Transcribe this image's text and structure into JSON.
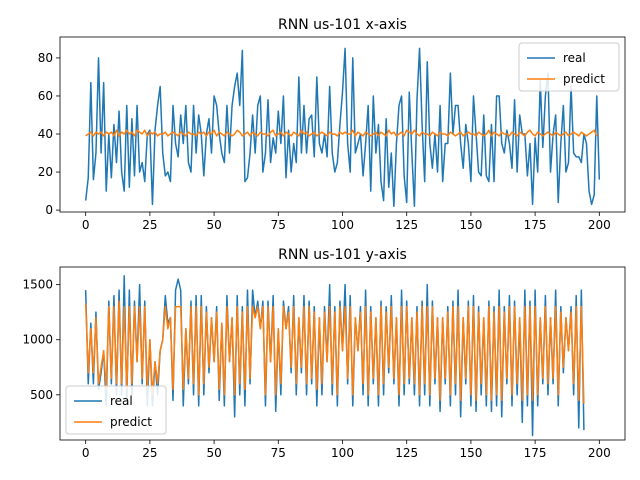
{
  "chart_data": [
    {
      "type": "line",
      "title": "RNN us-101 x-axis",
      "xlabel": "",
      "ylabel": "",
      "xlim": [
        -10,
        210
      ],
      "ylim": [
        -1,
        91
      ],
      "xticks": [
        0,
        25,
        50,
        75,
        100,
        125,
        150,
        175,
        200
      ],
      "yticks": [
        0,
        20,
        40,
        60,
        80
      ],
      "legend": "upper right",
      "grid": false,
      "series": [
        {
          "name": "real",
          "color": "#1f77b4",
          "values": [
            5,
            17,
            67,
            16,
            30,
            80,
            30,
            67,
            10,
            40,
            17,
            45,
            25,
            52,
            20,
            10,
            55,
            12,
            48,
            18,
            55,
            20,
            25,
            15,
            40,
            42,
            3,
            42,
            55,
            65,
            30,
            18,
            20,
            15,
            55,
            35,
            28,
            50,
            35,
            55,
            25,
            20,
            55,
            30,
            50,
            40,
            18,
            40,
            48,
            30,
            60,
            55,
            40,
            30,
            25,
            55,
            30,
            55,
            65,
            72,
            55,
            84,
            15,
            17,
            30,
            50,
            30,
            55,
            60,
            20,
            30,
            58,
            25,
            38,
            30,
            52,
            35,
            60,
            17,
            42,
            20,
            35,
            25,
            70,
            30,
            55,
            30,
            48,
            50,
            28,
            70,
            35,
            30,
            40,
            28,
            65,
            30,
            20,
            25,
            45,
            62,
            85,
            35,
            20,
            80,
            30,
            35,
            40,
            18,
            35,
            55,
            10,
            60,
            30,
            45,
            15,
            5,
            48,
            12,
            30,
            2,
            35,
            55,
            60,
            18,
            4,
            62,
            30,
            2,
            58,
            85,
            45,
            15,
            78,
            35,
            22,
            40,
            20,
            55,
            15,
            35,
            35,
            72,
            40,
            55,
            55,
            35,
            22,
            45,
            35,
            15,
            60,
            40,
            20,
            18,
            50,
            18,
            15,
            45,
            15,
            60,
            60,
            35,
            30,
            42,
            35,
            22,
            58,
            20,
            50,
            40,
            40,
            18,
            35,
            3,
            38,
            20,
            68,
            33,
            60,
            72,
            20,
            40,
            50,
            4,
            35,
            55,
            20,
            25,
            65,
            30,
            28,
            28,
            25,
            40,
            35,
            10,
            3,
            8,
            60,
            16
          ]
        },
        {
          "name": "predict",
          "color": "#ff7f0e",
          "values": [
            39,
            40,
            41,
            39,
            41,
            40,
            41,
            39,
            41,
            40,
            41,
            39,
            42,
            39,
            41,
            40,
            42,
            40,
            41,
            39,
            42,
            41,
            40,
            42,
            39,
            41,
            40,
            41,
            39,
            40,
            40,
            41,
            39,
            40,
            41,
            40,
            39,
            41,
            40,
            39,
            41,
            40,
            40,
            39,
            41,
            40,
            41,
            39,
            41,
            40,
            42,
            39,
            41,
            40,
            39,
            41,
            40,
            39,
            40,
            42,
            41,
            39,
            40,
            41,
            39,
            41,
            40,
            39,
            41,
            40,
            40,
            39,
            41,
            42,
            39,
            40,
            41,
            39,
            41,
            40,
            39,
            41,
            40,
            39,
            42,
            40,
            41,
            39,
            40,
            41,
            39,
            40,
            41,
            40,
            39,
            41,
            40,
            40,
            39,
            41,
            40,
            41,
            40,
            40,
            42,
            39,
            41,
            40,
            39,
            41,
            40,
            39,
            40,
            41,
            39,
            41,
            40,
            39,
            42,
            40,
            41,
            39,
            40,
            41,
            39,
            42,
            41,
            40,
            42,
            40,
            39,
            41,
            40,
            40,
            39,
            41,
            40,
            39,
            41,
            40,
            40,
            39,
            41,
            40,
            39,
            40,
            41,
            39,
            40,
            41,
            40,
            40,
            39,
            41,
            40,
            39,
            40,
            42,
            39,
            41,
            40,
            39,
            41,
            40,
            40,
            39,
            41,
            40,
            39,
            41,
            40,
            39,
            41,
            42,
            40,
            39,
            41,
            40,
            39,
            40,
            41,
            40,
            39,
            41,
            40,
            39,
            40,
            41,
            39,
            40,
            41,
            40,
            39,
            41,
            40,
            39,
            40,
            41,
            42,
            39
          ]
        }
      ]
    },
    {
      "type": "line",
      "title": "RNN us-101 y-axis",
      "xlabel": "",
      "ylabel": "",
      "xlim": [
        -10,
        210
      ],
      "ylim": [
        90,
        1660
      ],
      "xticks": [
        0,
        25,
        50,
        75,
        100,
        125,
        150,
        175,
        200
      ],
      "yticks": [
        500,
        1000,
        1500
      ],
      "legend": "lower left",
      "grid": false,
      "series": [
        {
          "name": "real",
          "color": "#1f77b4",
          "values": [
            1450,
            600,
            1150,
            600,
            1250,
            550,
            700,
            900,
            400,
            1350,
            600,
            1400,
            500,
            1450,
            500,
            1580,
            450,
            1450,
            500,
            1350,
            800,
            1500,
            600,
            1350,
            400,
            1000,
            400,
            800,
            500,
            900,
            1000,
            1400,
            1150,
            1200,
            450,
            1450,
            1550,
            1450,
            400,
            1100,
            600,
            1350,
            500,
            1400,
            400,
            1400,
            500,
            1300,
            700,
            1200,
            800,
            1300,
            450,
            1150,
            400,
            1400,
            800,
            1200,
            300,
            1400,
            500,
            1300,
            400,
            1450,
            600,
            1450,
            1200,
            1350,
            1100,
            1350,
            400,
            1350,
            800,
            1400,
            350,
            1100,
            500,
            1350,
            1100,
            1300,
            700,
            1400,
            500,
            1200,
            700,
            1400,
            500,
            1350,
            600,
            1300,
            400,
            1200,
            500,
            1300,
            800,
            1500,
            500,
            1300,
            400,
            1350,
            900,
            1500,
            600,
            1400,
            400,
            1200,
            900,
            1300,
            500,
            1450,
            400,
            1300,
            600,
            1200,
            400,
            1350,
            500,
            1300,
            700,
            1400,
            600,
            1200,
            400,
            1450,
            500,
            1350,
            600,
            1200,
            500,
            1300,
            400,
            1350,
            500,
            1500,
            400,
            1350,
            600,
            1200,
            350,
            1200,
            600,
            1300,
            400,
            1350,
            500,
            1450,
            300,
            1200,
            600,
            1350,
            400,
            1400,
            350,
            1300,
            500,
            1200,
            400,
            1350,
            350,
            1300,
            400,
            1450,
            300,
            1300,
            600,
            1400,
            400,
            1350,
            500,
            1200,
            250,
            1450,
            400,
            1350,
            130,
            1450,
            400,
            1200,
            600,
            1400,
            500,
            1200,
            600,
            1450,
            400,
            1300,
            700,
            1200,
            900,
            1300,
            500,
            1400,
            200,
            1450,
            180
          ]
        },
        {
          "name": "predict",
          "color": "#ff7f0e",
          "values": [
            1330,
            700,
            1100,
            700,
            1200,
            600,
            750,
            900,
            550,
            1300,
            650,
            1300,
            600,
            1350,
            600,
            1300,
            550,
            1300,
            600,
            1300,
            800,
            1300,
            650,
            1300,
            550,
            1000,
            500,
            800,
            600,
            900,
            1000,
            1300,
            1100,
            1200,
            550,
            1300,
            1300,
            1300,
            550,
            1100,
            650,
            1300,
            600,
            1300,
            500,
            1300,
            600,
            1250,
            750,
            1200,
            800,
            1250,
            550,
            1150,
            500,
            1300,
            800,
            1200,
            500,
            1300,
            600,
            1250,
            550,
            1300,
            650,
            1300,
            1200,
            1300,
            1100,
            1300,
            500,
            1300,
            800,
            1300,
            500,
            1100,
            600,
            1300,
            1100,
            1250,
            750,
            1300,
            600,
            1200,
            750,
            1300,
            600,
            1300,
            650,
            1250,
            550,
            1200,
            600,
            1250,
            800,
            1300,
            600,
            1250,
            500,
            1300,
            900,
            1300,
            650,
            1300,
            500,
            1200,
            900,
            1250,
            600,
            1300,
            500,
            1250,
            650,
            1200,
            500,
            1300,
            600,
            1250,
            750,
            1300,
            650,
            1200,
            500,
            1300,
            600,
            1300,
            650,
            1200,
            600,
            1250,
            500,
            1300,
            600,
            1300,
            500,
            1300,
            650,
            1200,
            450,
            1200,
            650,
            1250,
            500,
            1300,
            600,
            1300,
            450,
            1200,
            650,
            1300,
            500,
            1300,
            450,
            1250,
            600,
            1200,
            500,
            1300,
            450,
            1250,
            500,
            1300,
            450,
            1250,
            650,
            1300,
            500,
            1300,
            600,
            1200,
            450,
            1300,
            500,
            1300,
            450,
            1300,
            500,
            1200,
            650,
            1300,
            600,
            1200,
            650,
            1300,
            500,
            1250,
            750,
            1200,
            900,
            1250,
            600,
            1300,
            450,
            1300,
            420
          ]
        }
      ]
    }
  ]
}
